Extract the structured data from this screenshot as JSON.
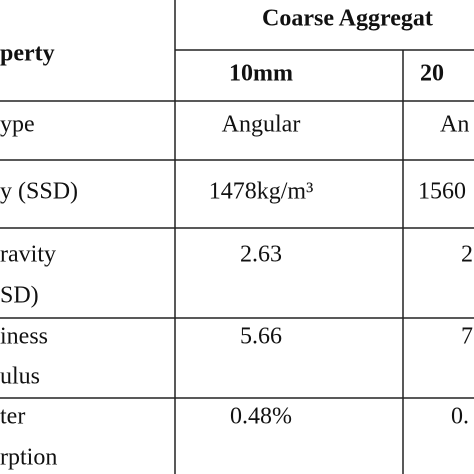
{
  "header": {
    "property": "perty",
    "group": "Coarse Aggregat",
    "sizes": [
      "10mm",
      "20"
    ]
  },
  "rows": [
    {
      "label": [
        "ype"
      ],
      "cells": [
        "Angular",
        "An"
      ]
    },
    {
      "label": [
        "y (SSD)"
      ],
      "cells": [
        "1478kg/m³",
        "1560"
      ]
    },
    {
      "label": [
        "ravity",
        "SD)"
      ],
      "cells": [
        "2.63",
        "2"
      ]
    },
    {
      "label": [
        "iness",
        "ulus"
      ],
      "cells": [
        "5.66",
        "7"
      ]
    },
    {
      "label": [
        "ter",
        "rption"
      ],
      "cells": [
        "0.48%",
        "0."
      ]
    }
  ]
}
